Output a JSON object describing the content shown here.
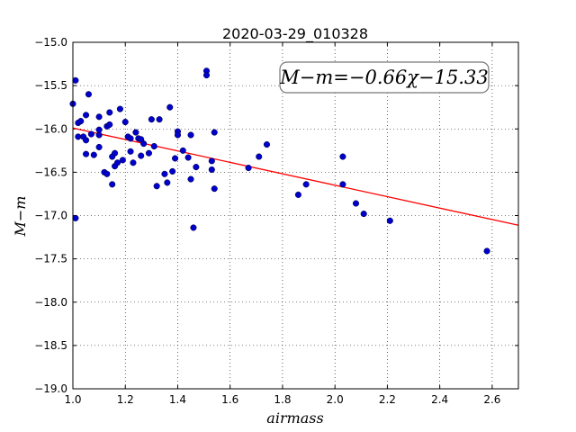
{
  "chart_data": {
    "type": "scatter",
    "title": "2020-03-29_010328",
    "xlabel": "airmass",
    "ylabel": "M−m",
    "xlim": [
      1.0,
      2.7
    ],
    "ylim": [
      -19.0,
      -15.0
    ],
    "x_ticks": [
      "1.0",
      "1.2",
      "1.4",
      "1.6",
      "1.8",
      "2.0",
      "2.2",
      "2.4",
      "2.6"
    ],
    "y_ticks": [
      "−15.0",
      "−15.5",
      "−16.0",
      "−16.5",
      "−17.0",
      "−17.5",
      "−18.0",
      "−18.5",
      "−19.0"
    ],
    "grid": true,
    "annotation": "M−m=−0.66χ−15.33",
    "fit": {
      "slope": -0.66,
      "intercept": -15.33,
      "color": "#ff0000"
    },
    "point_color": "#0000cc",
    "points": [
      [
        1.0,
        -15.71
      ],
      [
        1.01,
        -15.44
      ],
      [
        1.01,
        -17.03
      ],
      [
        1.02,
        -15.93
      ],
      [
        1.02,
        -16.09
      ],
      [
        1.03,
        -15.91
      ],
      [
        1.04,
        -16.09
      ],
      [
        1.05,
        -15.84
      ],
      [
        1.05,
        -16.13
      ],
      [
        1.05,
        -16.29
      ],
      [
        1.06,
        -15.6
      ],
      [
        1.07,
        -16.06
      ],
      [
        1.08,
        -16.3
      ],
      [
        1.1,
        -15.86
      ],
      [
        1.1,
        -16.07
      ],
      [
        1.1,
        -16.21
      ],
      [
        1.1,
        -16.01
      ],
      [
        1.12,
        -16.5
      ],
      [
        1.13,
        -16.52
      ],
      [
        1.13,
        -15.97
      ],
      [
        1.14,
        -15.95
      ],
      [
        1.14,
        -15.81
      ],
      [
        1.15,
        -16.32
      ],
      [
        1.15,
        -16.64
      ],
      [
        1.16,
        -16.43
      ],
      [
        1.16,
        -16.28
      ],
      [
        1.17,
        -16.39
      ],
      [
        1.18,
        -15.77
      ],
      [
        1.19,
        -16.36
      ],
      [
        1.2,
        -15.92
      ],
      [
        1.21,
        -16.09
      ],
      [
        1.22,
        -16.26
      ],
      [
        1.22,
        -16.11
      ],
      [
        1.23,
        -16.39
      ],
      [
        1.24,
        -16.04
      ],
      [
        1.25,
        -16.11
      ],
      [
        1.26,
        -16.31
      ],
      [
        1.26,
        -16.12
      ],
      [
        1.27,
        -16.17
      ],
      [
        1.29,
        -16.28
      ],
      [
        1.3,
        -15.89
      ],
      [
        1.31,
        -16.2
      ],
      [
        1.32,
        -16.66
      ],
      [
        1.33,
        -15.89
      ],
      [
        1.35,
        -16.52
      ],
      [
        1.36,
        -16.62
      ],
      [
        1.37,
        -15.75
      ],
      [
        1.38,
        -16.49
      ],
      [
        1.39,
        -16.34
      ],
      [
        1.4,
        -16.03
      ],
      [
        1.4,
        -16.07
      ],
      [
        1.42,
        -16.25
      ],
      [
        1.44,
        -16.33
      ],
      [
        1.45,
        -16.07
      ],
      [
        1.45,
        -16.58
      ],
      [
        1.46,
        -17.14
      ],
      [
        1.47,
        -16.44
      ],
      [
        1.51,
        -15.33
      ],
      [
        1.51,
        -15.38
      ],
      [
        1.53,
        -16.47
      ],
      [
        1.53,
        -16.37
      ],
      [
        1.54,
        -16.69
      ],
      [
        1.54,
        -16.04
      ],
      [
        1.67,
        -16.45
      ],
      [
        1.71,
        -16.32
      ],
      [
        1.74,
        -16.18
      ],
      [
        1.86,
        -16.76
      ],
      [
        1.89,
        -16.64
      ],
      [
        2.03,
        -16.32
      ],
      [
        2.03,
        -16.64
      ],
      [
        2.08,
        -16.86
      ],
      [
        2.11,
        -16.98
      ],
      [
        2.21,
        -17.06
      ],
      [
        2.58,
        -17.41
      ]
    ]
  }
}
